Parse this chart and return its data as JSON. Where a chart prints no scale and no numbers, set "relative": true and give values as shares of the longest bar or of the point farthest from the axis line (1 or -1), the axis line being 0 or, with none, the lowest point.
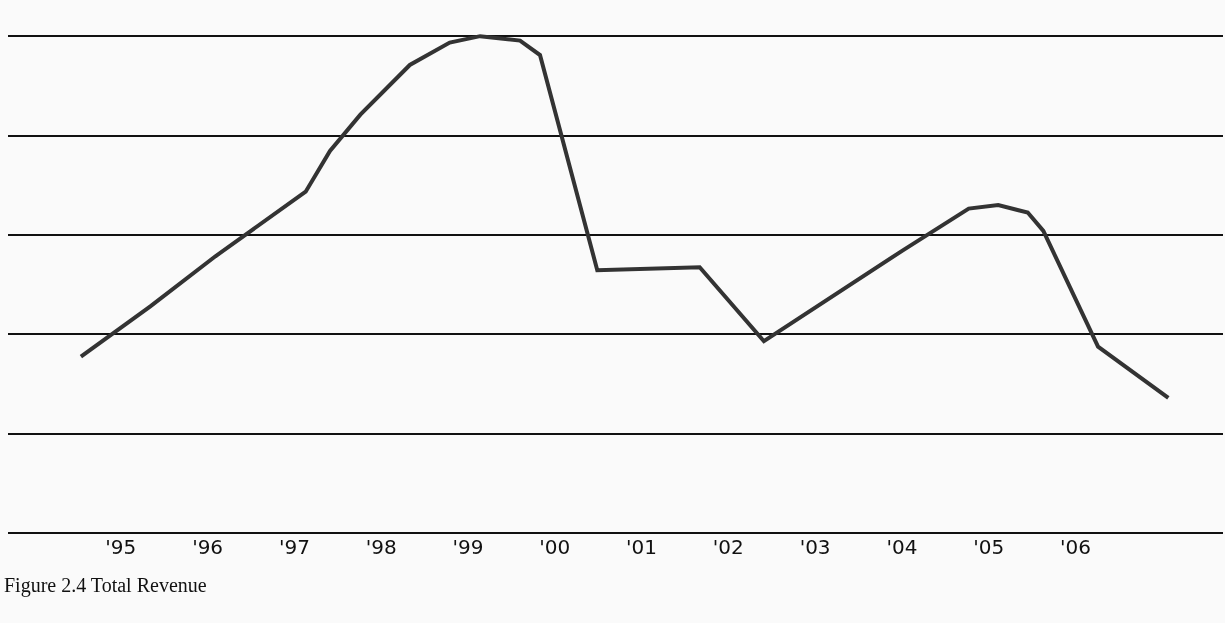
{
  "chart_data": {
    "type": "line",
    "relative": true,
    "grid": "y",
    "line_style": "solid",
    "marker": "none",
    "x": [
      1994.54,
      1995.34,
      1996.09,
      1997.13,
      1997.41,
      1997.76,
      1998.33,
      1998.79,
      1999.14,
      1999.6,
      1999.83,
      2000.49,
      2001.67,
      2002.41,
      2004.02,
      2004.77,
      2005.11,
      2005.45,
      2005.63,
      2006.26,
      2007.07
    ],
    "series": [
      {
        "color": "#333333",
        "values": [
          0.355,
          0.456,
          0.557,
          0.687,
          0.769,
          0.842,
          0.942,
          0.987,
          1,
          0.991,
          0.962,
          0.529,
          0.535,
          0.386,
          0.57,
          0.653,
          0.66,
          0.645,
          0.608,
          0.375,
          0.272
        ]
      }
    ],
    "xlim": [
      1993.7,
      2007.7
    ],
    "xticks": [
      {
        "value": 1995,
        "label": "'95"
      },
      {
        "value": 1996,
        "label": "'96"
      },
      {
        "value": 1997,
        "label": "'97"
      },
      {
        "value": 1998,
        "label": "'98"
      },
      {
        "value": 1999,
        "label": "'99"
      },
      {
        "value": 2000,
        "label": "'00"
      },
      {
        "value": 2001,
        "label": "'01"
      },
      {
        "value": 2002,
        "label": "'02"
      },
      {
        "value": 2003,
        "label": "'03"
      },
      {
        "value": 2004,
        "label": "'04"
      },
      {
        "value": 2005,
        "label": "'05"
      },
      {
        "value": 2006,
        "label": "'06"
      }
    ],
    "annotations": [
      "Figure 2.4 Total Revenue"
    ]
  }
}
